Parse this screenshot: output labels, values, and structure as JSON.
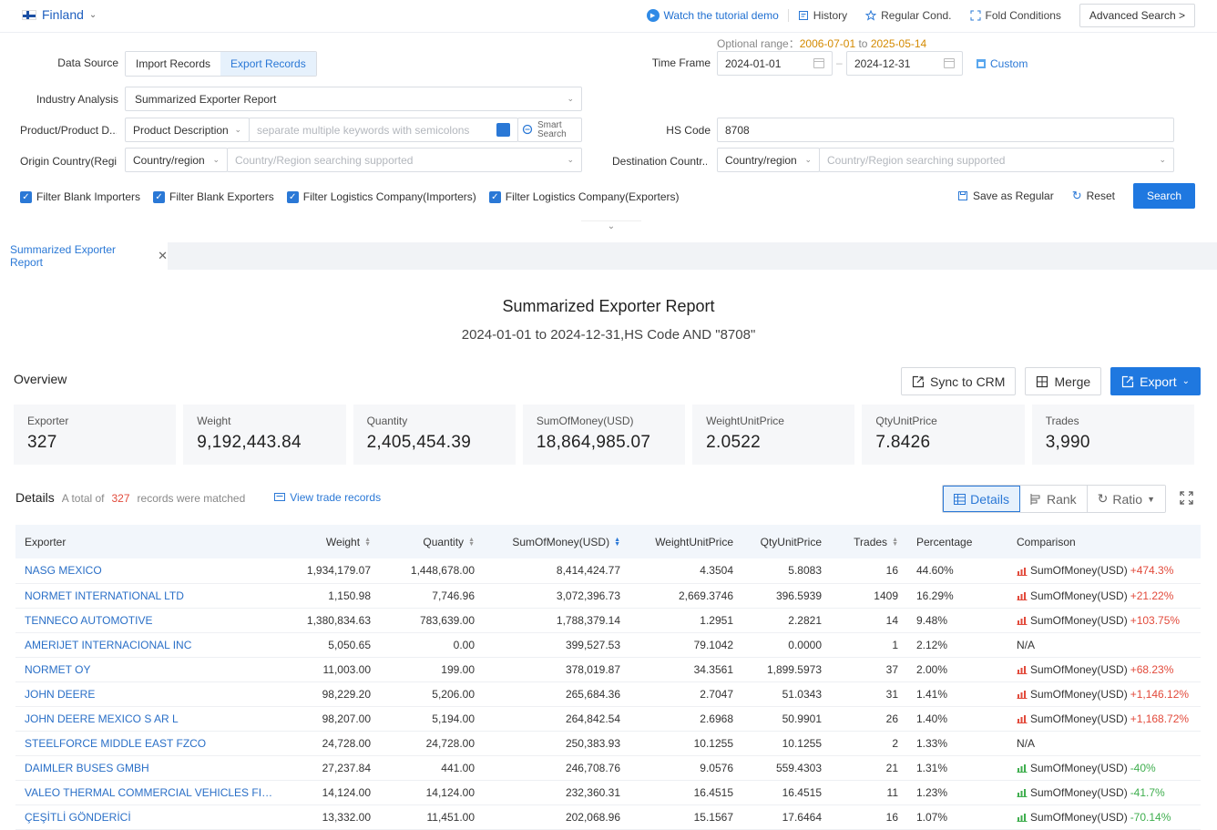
{
  "topbar": {
    "country": "Finland",
    "tutorial": "Watch the tutorial demo",
    "history": "History",
    "regular": "Regular Cond.",
    "fold": "Fold Conditions",
    "advanced": "Advanced Search >"
  },
  "form": {
    "optional_range_label": "Optional range：",
    "range_start": "2006-07-01",
    "range_to": "to",
    "range_end": "2025-05-14",
    "data_source_label": "Data Source",
    "import_records": "Import Records",
    "export_records": "Export Records",
    "time_frame_label": "Time Frame",
    "date_from": "2024-01-01",
    "date_sep": "–",
    "date_to": "2024-12-31",
    "custom": "Custom",
    "industry_label": "Industry Analysis",
    "industry_value": "Summarized Exporter Report",
    "product_label": "Product/Product D...",
    "product_type": "Product Description",
    "keyword_placeholder": "separate multiple keywords with semicolons",
    "smart_search_1": "Smart",
    "smart_search_2": "Search",
    "hs_label": "HS Code",
    "hs_value": "8708",
    "origin_label": "Origin Country(Regi...",
    "origin_type": "Country/region",
    "origin_placeholder": "Country/Region searching supported",
    "dest_label": "Destination Countr...",
    "dest_type": "Country/region",
    "dest_placeholder": "Country/Region searching supported",
    "checkboxes": [
      "Filter Blank Importers",
      "Filter Blank Exporters",
      "Filter Logistics Company(Importers)",
      "Filter Logistics Company(Exporters)"
    ],
    "save_regular": "Save as Regular",
    "reset": "Reset",
    "search": "Search"
  },
  "tab": {
    "label": "Summarized Exporter Report"
  },
  "report": {
    "title": "Summarized Exporter Report",
    "subtitle": "2024-01-01 to 2024-12-31,HS Code AND \"8708\"",
    "overview": "Overview",
    "sync": "Sync to CRM",
    "merge": "Merge",
    "export": "Export"
  },
  "stats": [
    {
      "k": "Exporter",
      "v": "327"
    },
    {
      "k": "Weight",
      "v": "9,192,443.84"
    },
    {
      "k": "Quantity",
      "v": "2,405,454.39"
    },
    {
      "k": "SumOfMoney(USD)",
      "v": "18,864,985.07"
    },
    {
      "k": "WeightUnitPrice",
      "v": "2.0522"
    },
    {
      "k": "QtyUnitPrice",
      "v": "7.8426"
    },
    {
      "k": "Trades",
      "v": "3,990"
    }
  ],
  "details": {
    "title": "Details",
    "total_prefix": "A total of",
    "total": "327",
    "total_suffix": "records were matched",
    "view_trade": "View trade records",
    "tabs": [
      "Details",
      "Rank",
      "Ratio"
    ]
  },
  "table": {
    "headers": [
      "Exporter",
      "Weight",
      "Quantity",
      "SumOfMoney(USD)",
      "WeightUnitPrice",
      "QtyUnitPrice",
      "Trades",
      "Percentage",
      "Comparison"
    ],
    "rows": [
      {
        "name": "NASG MEXICO",
        "weight": "1,934,179.07",
        "qty": "1,448,678.00",
        "sum": "8,414,424.77",
        "wup": "4.3504",
        "qup": "5.8083",
        "trades": "16",
        "pct": "44.60%",
        "cmp_label": "SumOfMoney(USD)",
        "cmp_val": "+474.3%",
        "dir": "up"
      },
      {
        "name": "NORMET INTERNATIONAL LTD",
        "weight": "1,150.98",
        "qty": "7,746.96",
        "sum": "3,072,396.73",
        "wup": "2,669.3746",
        "qup": "396.5939",
        "trades": "1409",
        "pct": "16.29%",
        "cmp_label": "SumOfMoney(USD)",
        "cmp_val": "+21.22%",
        "dir": "up"
      },
      {
        "name": "TENNECO AUTOMOTIVE",
        "weight": "1,380,834.63",
        "qty": "783,639.00",
        "sum": "1,788,379.14",
        "wup": "1.2951",
        "qup": "2.2821",
        "trades": "14",
        "pct": "9.48%",
        "cmp_label": "SumOfMoney(USD)",
        "cmp_val": "+103.75%",
        "dir": "up"
      },
      {
        "name": "AMERIJET INTERNACIONAL INC",
        "weight": "5,050.65",
        "qty": "0.00",
        "sum": "399,527.53",
        "wup": "79.1042",
        "qup": "0.0000",
        "trades": "1",
        "pct": "2.12%",
        "cmp_label": "N/A",
        "cmp_val": "",
        "dir": "none"
      },
      {
        "name": "NORMET OY",
        "weight": "11,003.00",
        "qty": "199.00",
        "sum": "378,019.87",
        "wup": "34.3561",
        "qup": "1,899.5973",
        "trades": "37",
        "pct": "2.00%",
        "cmp_label": "SumOfMoney(USD)",
        "cmp_val": "+68.23%",
        "dir": "up"
      },
      {
        "name": "JOHN DEERE",
        "weight": "98,229.20",
        "qty": "5,206.00",
        "sum": "265,684.36",
        "wup": "2.7047",
        "qup": "51.0343",
        "trades": "31",
        "pct": "1.41%",
        "cmp_label": "SumOfMoney(USD)",
        "cmp_val": "+1,146.12%",
        "dir": "up"
      },
      {
        "name": "JOHN DEERE MEXICO S AR L",
        "weight": "98,207.00",
        "qty": "5,194.00",
        "sum": "264,842.54",
        "wup": "2.6968",
        "qup": "50.9901",
        "trades": "26",
        "pct": "1.40%",
        "cmp_label": "SumOfMoney(USD)",
        "cmp_val": "+1,168.72%",
        "dir": "up"
      },
      {
        "name": "STEELFORCE MIDDLE EAST FZCO",
        "weight": "24,728.00",
        "qty": "24,728.00",
        "sum": "250,383.93",
        "wup": "10.1255",
        "qup": "10.1255",
        "trades": "2",
        "pct": "1.33%",
        "cmp_label": "N/A",
        "cmp_val": "",
        "dir": "none"
      },
      {
        "name": "DAIMLER BUSES GMBH",
        "weight": "27,237.84",
        "qty": "441.00",
        "sum": "246,708.76",
        "wup": "9.0576",
        "qup": "559.4303",
        "trades": "21",
        "pct": "1.31%",
        "cmp_label": "SumOfMoney(USD)",
        "cmp_val": "-40%",
        "dir": "down"
      },
      {
        "name": "VALEO THERMAL COMMERCIAL VEHICLES FINLAND ...",
        "weight": "14,124.00",
        "qty": "14,124.00",
        "sum": "232,360.31",
        "wup": "16.4515",
        "qup": "16.4515",
        "trades": "11",
        "pct": "1.23%",
        "cmp_label": "SumOfMoney(USD)",
        "cmp_val": "-41.7%",
        "dir": "down"
      },
      {
        "name": "ÇEŞİTLİ GÖNDERİCİ",
        "weight": "13,332.00",
        "qty": "11,451.00",
        "sum": "202,068.96",
        "wup": "15.1567",
        "qup": "17.6464",
        "trades": "16",
        "pct": "1.07%",
        "cmp_label": "SumOfMoney(USD)",
        "cmp_val": "-70.14%",
        "dir": "down"
      }
    ]
  },
  "colors": {
    "accent": "#1f78e0",
    "link": "#2a6fc7",
    "up": "#e24a3b",
    "down": "#3fae4e"
  }
}
